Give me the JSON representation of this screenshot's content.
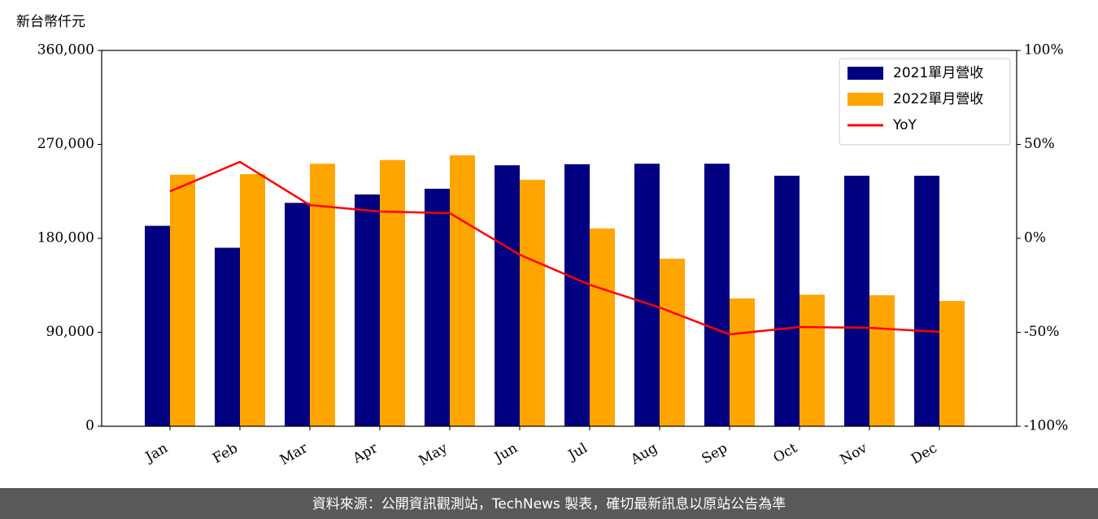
{
  "chart_data": {
    "type": "bar",
    "y_label": "新台幣仟元",
    "source": "資料來源：公開資訊觀測站，TechNews 製表，確切最新訊息以原站公告為準",
    "categories": [
      "Jan",
      "Feb",
      "Mar",
      "Apr",
      "May",
      "Jun",
      "Jul",
      "Aug",
      "Sep",
      "Oct",
      "Nov",
      "Dec"
    ],
    "series": [
      {
        "name": "2021單月營收",
        "type": "bar",
        "color": "#000080",
        "values": [
          192000,
          171000,
          214000,
          222000,
          227500,
          250000,
          251000,
          251500,
          251500,
          240000,
          240000,
          240000
        ]
      },
      {
        "name": "2022單月營收",
        "type": "bar",
        "color": "#ffa500",
        "values": [
          241000,
          241500,
          251500,
          255000,
          259500,
          236000,
          189500,
          160500,
          122500,
          126000,
          125500,
          120000
        ]
      },
      {
        "name": "YoY",
        "type": "line",
        "color": "#ff0000",
        "axis": "y2",
        "values": [
          25,
          40.7,
          17.7,
          14.3,
          13.4,
          -8.7,
          -24.7,
          -36.8,
          -51.1,
          -47.2,
          -47.6,
          -49.8
        ]
      }
    ],
    "ylim": [
      0,
      360000
    ],
    "yticks": [
      0,
      {
        "value": 90000,
        "label": "90,000"
      },
      {
        "value": 180000,
        "label": "180,000"
      },
      {
        "value": 270000,
        "label": "270,000"
      },
      {
        "value": 360000,
        "label": "360,000"
      }
    ],
    "y2lim": [
      -100,
      100
    ],
    "y2ticks": [
      {
        "value": -100,
        "label": "-100%"
      },
      {
        "value": -50,
        "label": "-50%"
      },
      {
        "value": 0,
        "label": "0%"
      },
      {
        "value": 50,
        "label": "50%"
      },
      {
        "value": 100,
        "label": "100%"
      }
    ],
    "legend": "upper right"
  }
}
